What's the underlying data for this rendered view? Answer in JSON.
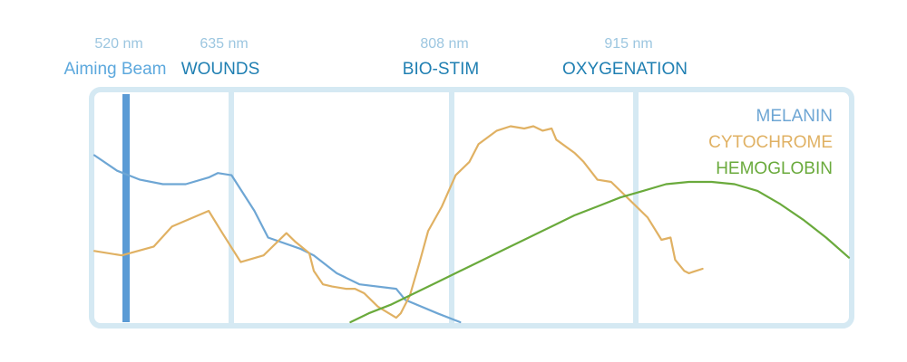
{
  "chart_data": {
    "type": "line",
    "title": "",
    "xlabel": "",
    "ylabel": "",
    "markers": [
      {
        "wavelength": "520 nm",
        "label": "Aiming Beam",
        "label_color": "#5ca8dd",
        "line_color": "#5b9bd5",
        "style": "beam"
      },
      {
        "wavelength": "635 nm",
        "label": "WOUNDS",
        "label_color": "#1f7fb2",
        "line_color": "#d5e9f3",
        "style": "divider"
      },
      {
        "wavelength": "808 nm",
        "label": "BIO-STIM",
        "label_color": "#1f7fb2",
        "line_color": "#d5e9f3",
        "style": "divider"
      },
      {
        "wavelength": "915 nm",
        "label": "OXYGENATION",
        "label_color": "#1f7fb2",
        "line_color": "#d5e9f3",
        "style": "divider"
      }
    ],
    "series": [
      {
        "name": "MELANIN",
        "color": "#6ea6d4",
        "points": [
          [
            0,
            0.75
          ],
          [
            5,
            0.68
          ],
          [
            10,
            0.64
          ],
          [
            15,
            0.62
          ],
          [
            20,
            0.62
          ],
          [
            25,
            0.65
          ],
          [
            27,
            0.67
          ],
          [
            30,
            0.66
          ],
          [
            35,
            0.5
          ],
          [
            38,
            0.38
          ],
          [
            45,
            0.33
          ],
          [
            48,
            0.3
          ],
          [
            53,
            0.22
          ],
          [
            58,
            0.17
          ],
          [
            66,
            0.15
          ],
          [
            68,
            0.1
          ],
          [
            75,
            0.04
          ],
          [
            80,
            0.0
          ]
        ]
      },
      {
        "name": "CYTOCHROME",
        "color": "#e0b163",
        "points": [
          [
            0,
            0.32
          ],
          [
            6,
            0.3
          ],
          [
            13,
            0.34
          ],
          [
            17,
            0.43
          ],
          [
            25,
            0.5
          ],
          [
            28,
            0.4
          ],
          [
            32,
            0.27
          ],
          [
            37,
            0.3
          ],
          [
            40,
            0.36
          ],
          [
            42,
            0.4
          ],
          [
            44,
            0.36
          ],
          [
            47,
            0.31
          ],
          [
            48,
            0.23
          ],
          [
            50,
            0.17
          ],
          [
            52,
            0.16
          ],
          [
            55,
            0.15
          ],
          [
            57,
            0.15
          ],
          [
            59,
            0.13
          ],
          [
            62,
            0.07
          ],
          [
            66,
            0.02
          ],
          [
            67,
            0.04
          ],
          [
            69,
            0.12
          ],
          [
            71,
            0.26
          ],
          [
            73,
            0.41
          ],
          [
            76,
            0.52
          ],
          [
            79,
            0.66
          ],
          [
            82,
            0.72
          ],
          [
            84,
            0.8
          ],
          [
            88,
            0.86
          ],
          [
            91,
            0.88
          ],
          [
            94,
            0.87
          ],
          [
            96,
            0.88
          ],
          [
            98,
            0.86
          ],
          [
            100,
            0.87
          ],
          [
            101,
            0.82
          ],
          [
            105,
            0.76
          ],
          [
            107,
            0.72
          ],
          [
            110,
            0.64
          ],
          [
            113,
            0.63
          ],
          [
            117,
            0.55
          ],
          [
            121,
            0.47
          ],
          [
            124,
            0.37
          ],
          [
            126,
            0.38
          ],
          [
            127,
            0.28
          ],
          [
            129,
            0.23
          ],
          [
            130,
            0.22
          ],
          [
            133,
            0.24
          ]
        ]
      },
      {
        "name": "HEMOGLOBIN",
        "color": "#6aaa3c",
        "points": [
          [
            56,
            0.0
          ],
          [
            60,
            0.04
          ],
          [
            65,
            0.08
          ],
          [
            70,
            0.13
          ],
          [
            75,
            0.18
          ],
          [
            80,
            0.23
          ],
          [
            85,
            0.28
          ],
          [
            90,
            0.33
          ],
          [
            95,
            0.38
          ],
          [
            100,
            0.43
          ],
          [
            105,
            0.48
          ],
          [
            110,
            0.52
          ],
          [
            115,
            0.56
          ],
          [
            120,
            0.59
          ],
          [
            125,
            0.62
          ],
          [
            130,
            0.63
          ],
          [
            135,
            0.63
          ],
          [
            140,
            0.62
          ],
          [
            145,
            0.59
          ],
          [
            150,
            0.53
          ],
          [
            155,
            0.46
          ],
          [
            160,
            0.38
          ],
          [
            165,
            0.29
          ]
        ]
      }
    ],
    "xlim": [
      0,
      165
    ],
    "ylim": [
      0,
      1
    ],
    "grid": false,
    "legend_position": "top-right"
  }
}
